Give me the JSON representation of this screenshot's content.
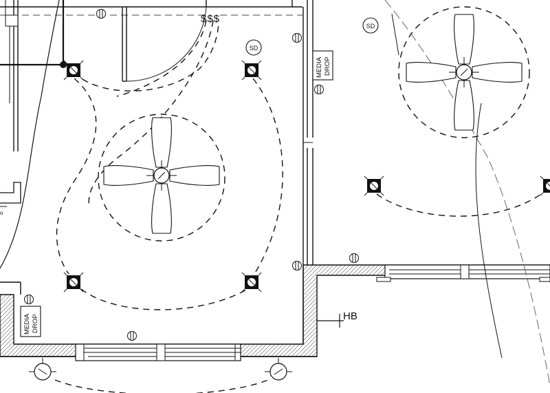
{
  "labels": {
    "switches": "$$$",
    "smoke_detector": "SD",
    "media_drop_line1": "MEDIA",
    "media_drop_line2": "DROP",
    "hose_bib": "HB"
  },
  "colors": {
    "ink": "#111111",
    "background": "#ffffff",
    "hatch": "#555555"
  },
  "symbols": {
    "fans": [
      "ceiling-fan",
      "ceiling-fan"
    ],
    "recessed_lights": [
      "recessed-light",
      "recessed-light",
      "recessed-light",
      "recessed-light",
      "recessed-light",
      "recessed-light"
    ],
    "outlets": [
      "duplex-outlet",
      "duplex-outlet",
      "duplex-outlet",
      "duplex-outlet",
      "duplex-outlet",
      "duplex-outlet"
    ],
    "wall_lights": [
      "wall-light",
      "wall-light"
    ]
  }
}
